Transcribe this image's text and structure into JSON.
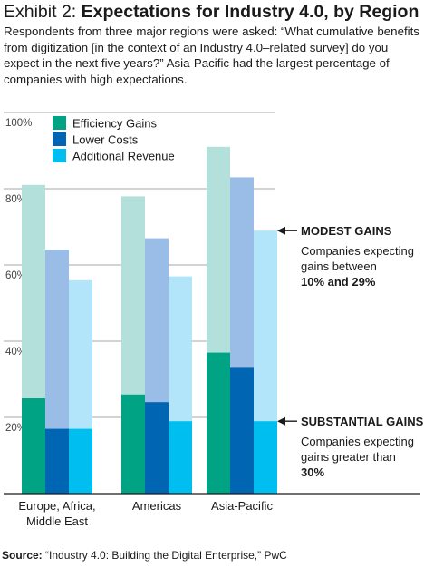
{
  "header": {
    "title_prefix": "Exhibit 2: ",
    "title_main": "Expectations for Industry 4.0, by Region",
    "subtitle": "Respondents from three major regions were asked: “What cumulative benefits from digitization [in the context of an Industry 4.0–related survey] do you expect in the next five years?” Asia-Pacific had the largest percentage of companies with high expectations."
  },
  "chart_data": {
    "type": "bar",
    "stacked_by_level": true,
    "categories": [
      "Europe, Africa, Middle East",
      "Americas",
      "Asia-Pacific"
    ],
    "category_lines": [
      [
        "Europe, Africa,",
        "Middle East"
      ],
      [
        "Americas"
      ],
      [
        "Asia-Pacific"
      ]
    ],
    "ylim": [
      0,
      100
    ],
    "y_ticks": [
      20,
      40,
      60,
      80,
      100
    ],
    "y_tick_labels": [
      "20%",
      "40%",
      "60%",
      "80%",
      "100%"
    ],
    "legend": [
      "Efficiency Gains",
      "Lower Costs",
      "Additional Revenue"
    ],
    "legend_position": "top-left",
    "grid": true,
    "series": [
      {
        "name": "Efficiency Gains",
        "substantial": [
          25,
          26,
          37
        ],
        "total": [
          81,
          78,
          91
        ],
        "color_dark": "#00a383",
        "color_light": "#b3e0da"
      },
      {
        "name": "Lower Costs",
        "substantial": [
          17,
          24,
          33
        ],
        "total": [
          64,
          67,
          83
        ],
        "color_dark": "#0066b3",
        "color_light": "#99bde6"
      },
      {
        "name": "Additional Revenue",
        "substantial": [
          17,
          19,
          19
        ],
        "total": [
          56,
          57,
          69
        ],
        "color_dark": "#00bff0",
        "color_light": "#b3e5fa"
      }
    ],
    "annotations": {
      "modest": {
        "heading": "MODEST GAINS",
        "lines": [
          "Companies expecting",
          "gains between"
        ],
        "bold_line": "10% and 29%",
        "at_value": 69
      },
      "substantial": {
        "heading": "SUBSTANTIAL GAINS",
        "lines": [
          "Companies expecting",
          "gains greater than"
        ],
        "bold_line": "30%",
        "at_value": 19
      }
    }
  },
  "footer": {
    "source_label": "Source:",
    "source_text": " “Industry 4.0: Building the Digital Enterprise,” PwC"
  }
}
